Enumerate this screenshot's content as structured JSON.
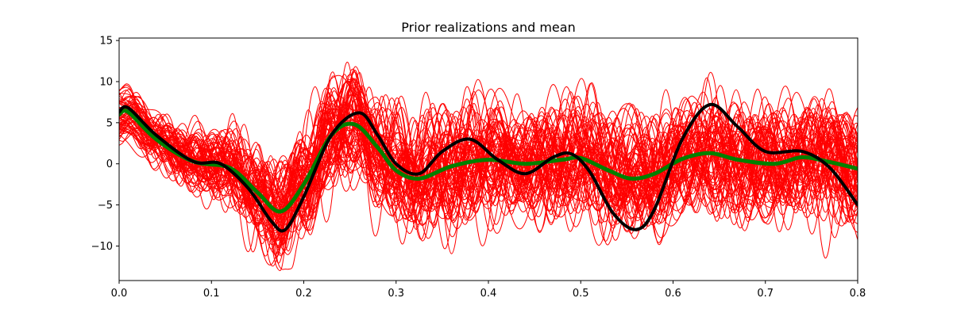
{
  "chart_data": {
    "type": "line",
    "title": "Prior realizations and mean",
    "xlabel": "",
    "ylabel": "",
    "xlim": [
      0.0,
      0.8
    ],
    "ylim": [
      -14.2,
      15.3
    ],
    "grid": false,
    "legend": "none",
    "x_ticks": [
      "0.0",
      "0.1",
      "0.2",
      "0.3",
      "0.4",
      "0.5",
      "0.6",
      "0.7",
      "0.8"
    ],
    "y_ticks": [
      "15",
      "10",
      "5",
      "0",
      "−5",
      "−10"
    ],
    "y_tick_values": [
      15,
      10,
      5,
      0,
      -5,
      -10
    ],
    "x_tick_values": [
      0.0,
      0.1,
      0.2,
      0.3,
      0.4,
      0.5,
      0.6,
      0.7,
      0.8
    ],
    "colors": {
      "realizations": "#ff0000",
      "mean": "#008000",
      "highlighted": "#000000"
    },
    "series": [
      {
        "role": "mean",
        "color": "#008000",
        "x": [
          0.0,
          0.01,
          0.04,
          0.08,
          0.12,
          0.15,
          0.175,
          0.2,
          0.23,
          0.255,
          0.28,
          0.3,
          0.325,
          0.36,
          0.4,
          0.44,
          0.48,
          0.5,
          0.53,
          0.555,
          0.58,
          0.61,
          0.64,
          0.67,
          0.71,
          0.74,
          0.77,
          0.8
        ],
        "y": [
          6.0,
          6.3,
          3.0,
          0.3,
          -0.5,
          -3.5,
          -5.8,
          -2.5,
          3.5,
          4.8,
          2.0,
          -0.8,
          -1.8,
          -0.3,
          0.5,
          0.0,
          0.5,
          0.7,
          -0.8,
          -1.8,
          -1.2,
          0.6,
          1.3,
          0.5,
          0.0,
          0.8,
          0.2,
          -0.6
        ]
      },
      {
        "role": "highlighted-realization",
        "color": "#000000",
        "x": [
          0.0,
          0.01,
          0.04,
          0.08,
          0.11,
          0.14,
          0.165,
          0.18,
          0.2,
          0.23,
          0.26,
          0.28,
          0.3,
          0.325,
          0.35,
          0.38,
          0.41,
          0.44,
          0.47,
          0.49,
          0.51,
          0.535,
          0.56,
          0.58,
          0.61,
          0.64,
          0.67,
          0.7,
          0.74,
          0.77,
          0.8
        ],
        "y": [
          6.3,
          6.8,
          3.5,
          0.3,
          0.0,
          -3.0,
          -7.0,
          -8.0,
          -4.0,
          3.5,
          6.2,
          3.5,
          0.0,
          -1.2,
          1.5,
          3.0,
          0.5,
          -1.2,
          0.8,
          1.2,
          -1.0,
          -6.0,
          -8.0,
          -5.5,
          3.0,
          7.2,
          4.5,
          1.5,
          1.5,
          -0.5,
          -5.0
        ]
      }
    ]
  }
}
